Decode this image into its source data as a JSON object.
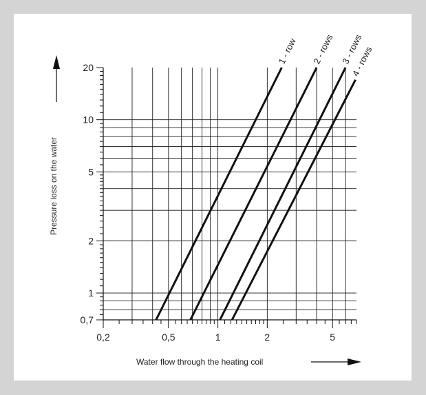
{
  "chart_data": {
    "type": "line",
    "xscale": "log",
    "yscale": "log",
    "xlim": [
      0.2,
      7
    ],
    "ylim": [
      0.7,
      20
    ],
    "grid": true,
    "xlabel": "Water flow through the heating coil",
    "ylabel": "Pressure loss on the water",
    "x_tick_labels": [
      "0,2",
      "0,5",
      "1",
      "2",
      "5"
    ],
    "x_tick_values": [
      0.2,
      0.5,
      1,
      2,
      5
    ],
    "y_tick_labels": [
      "0,7",
      "1",
      "2",
      "5",
      "10",
      "20"
    ],
    "y_tick_values": [
      0.7,
      1,
      2,
      5,
      10,
      20
    ],
    "series": [
      {
        "name": "1 - row",
        "points": [
          [
            0.42,
            0.7
          ],
          [
            2.45,
            20
          ]
        ]
      },
      {
        "name": "2 - rows",
        "points": [
          [
            0.68,
            0.7
          ],
          [
            4.0,
            20
          ]
        ]
      },
      {
        "name": "3 - rows",
        "points": [
          [
            1.03,
            0.7
          ],
          [
            6.0,
            20
          ]
        ]
      },
      {
        "name": "4 - rows",
        "points": [
          [
            1.22,
            0.7
          ],
          [
            6.9,
            17
          ]
        ]
      }
    ]
  }
}
